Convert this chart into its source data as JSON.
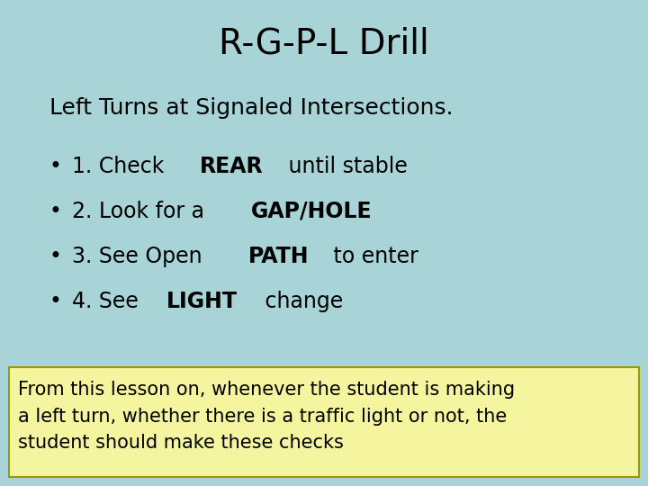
{
  "title": "R-G-P-L Drill",
  "title_fontsize": 28,
  "title_color": "#000000",
  "background_color": "#a8d4d8",
  "subtitle": "Left Turns at Signaled Intersections.",
  "subtitle_fontsize": 18,
  "subtitle_color": "#000000",
  "bullet_items": [
    {
      "prefix": "1. Check ",
      "bold": "REAR",
      "suffix": " until stable"
    },
    {
      "prefix": "2. Look for a ",
      "bold": "GAP/HOLE",
      "suffix": ""
    },
    {
      "prefix": "3. See Open ",
      "bold": "PATH",
      "suffix": " to enter"
    },
    {
      "prefix": "4. See ",
      "bold": "LIGHT",
      "suffix": " change"
    }
  ],
  "bullet_fontsize": 17,
  "bullet_color": "#000000",
  "note_text": "From this lesson on, whenever the student is making\na left turn, whether there is a traffic light or not, the\nstudent should make these checks",
  "note_fontsize": 15,
  "note_color": "#000000",
  "note_bg_color": "#f5f5a0",
  "note_border_color": "#999900"
}
